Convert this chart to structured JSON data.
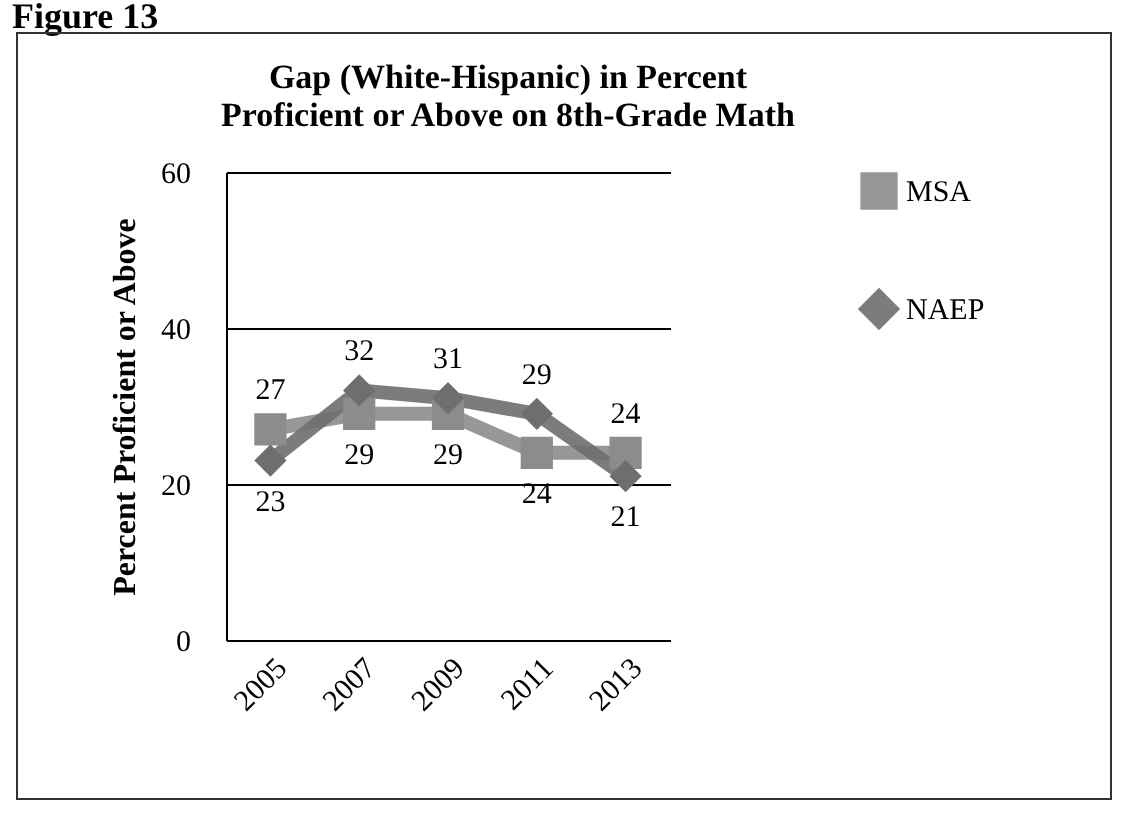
{
  "chart_data": {
    "type": "line",
    "title": [
      "Gap (White-Hispanic) in Percent",
      "Proficient or Above on 8th-Grade Math"
    ],
    "ylabel": "Percent Proficient or Above",
    "categories": [
      "2005",
      "2007",
      "2009",
      "2011",
      "2013"
    ],
    "series": [
      {
        "name": "MSA",
        "color": "#8c8c8c",
        "marker": "square",
        "values": [
          27,
          29,
          29,
          24,
          24
        ]
      },
      {
        "name": "NAEP",
        "color": "#6e6e6e",
        "marker": "diamond",
        "values": [
          23,
          32,
          31,
          29,
          21
        ]
      }
    ],
    "ylim": [
      0,
      60
    ],
    "yticks": [
      0,
      20,
      40,
      60
    ],
    "grid": "y",
    "legend": "right",
    "data_labels": true,
    "line_style": "solid",
    "annotations": [
      "Figure 13"
    ]
  }
}
